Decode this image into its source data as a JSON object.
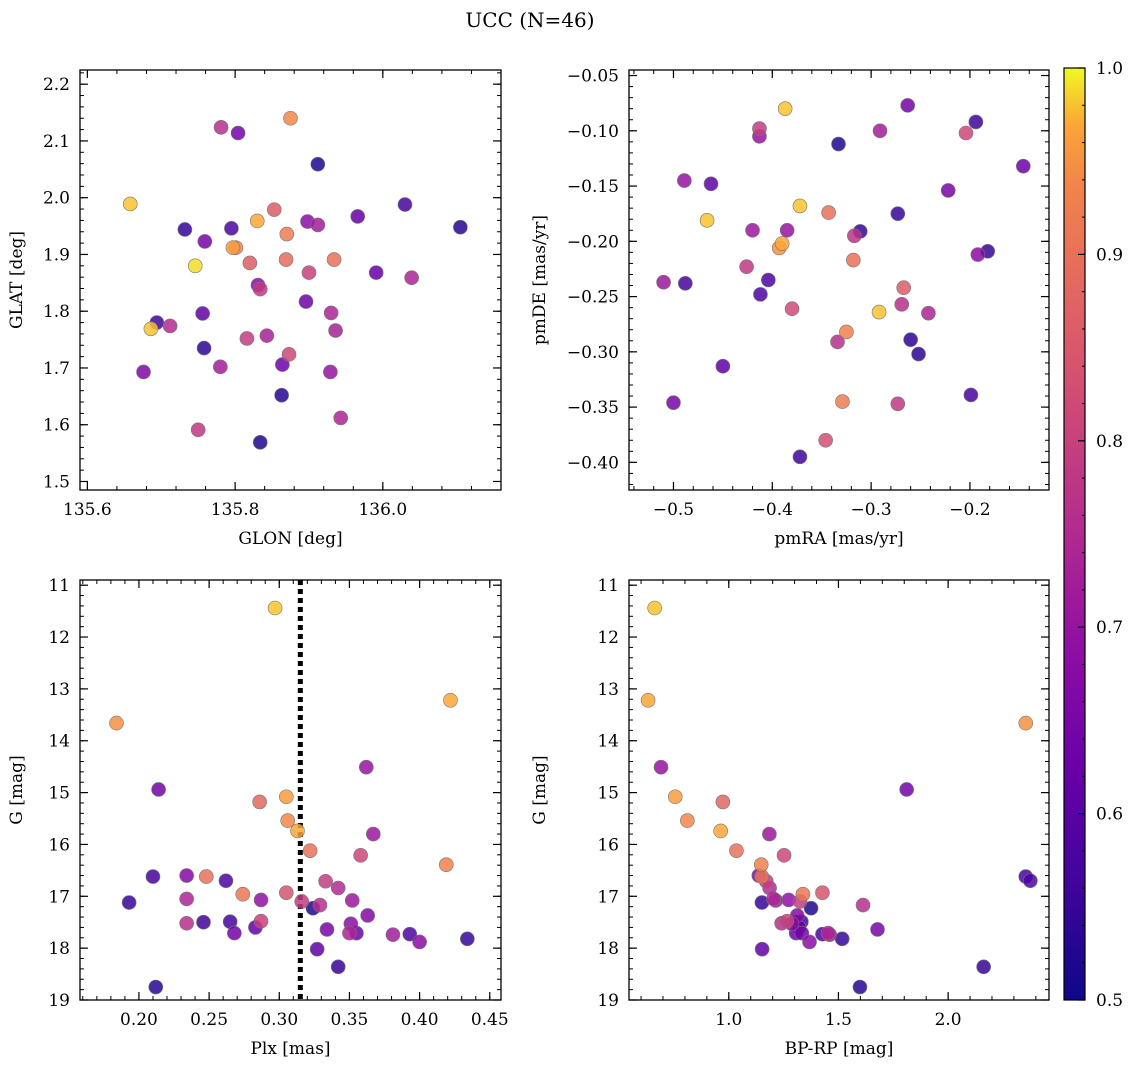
{
  "figure": {
    "title": "UCC (N=46)"
  },
  "colorbar": {
    "min": 0.5,
    "max": 1.0,
    "colormap": "plasma",
    "ticks": [
      0.5,
      0.6,
      0.7,
      0.8,
      0.9,
      1.0
    ],
    "tick_labels": [
      "0.5",
      "0.6",
      "0.7",
      "0.8",
      "0.9",
      "1.0"
    ]
  },
  "chart_data": [
    {
      "type": "scatter",
      "id": "glon-glat",
      "xlabel": "GLON [deg]",
      "ylabel": "GLAT [deg]",
      "xlim": [
        135.59,
        136.16
      ],
      "ylim": [
        1.485,
        2.225
      ],
      "x_ticks": [
        135.6,
        135.8,
        136.0
      ],
      "x_tick_labels": [
        "135.6",
        "135.8",
        "136.0"
      ],
      "y_ticks": [
        1.5,
        1.6,
        1.7,
        1.8,
        1.9,
        2.0,
        2.1,
        2.2
      ],
      "y_tick_labels": [
        "1.5",
        "1.6",
        "1.7",
        "1.8",
        "1.9",
        "2.0",
        "2.1",
        "2.2"
      ],
      "invert_y": false,
      "points": [
        {
          "x": 135.658,
          "y": 1.989,
          "c": 0.98
        },
        {
          "x": 135.875,
          "y": 2.14,
          "c": 0.94
        },
        {
          "x": 135.781,
          "y": 2.124,
          "c": 0.76
        },
        {
          "x": 135.804,
          "y": 2.114,
          "c": 0.64
        },
        {
          "x": 135.912,
          "y": 2.059,
          "c": 0.52
        },
        {
          "x": 136.03,
          "y": 1.988,
          "c": 0.57
        },
        {
          "x": 136.105,
          "y": 1.948,
          "c": 0.53
        },
        {
          "x": 135.853,
          "y": 1.979,
          "c": 0.86
        },
        {
          "x": 135.83,
          "y": 1.959,
          "c": 0.97
        },
        {
          "x": 135.898,
          "y": 1.958,
          "c": 0.68
        },
        {
          "x": 135.912,
          "y": 1.952,
          "c": 0.72
        },
        {
          "x": 135.966,
          "y": 1.967,
          "c": 0.62
        },
        {
          "x": 135.732,
          "y": 1.944,
          "c": 0.55
        },
        {
          "x": 135.795,
          "y": 1.946,
          "c": 0.58
        },
        {
          "x": 135.87,
          "y": 1.936,
          "c": 0.92
        },
        {
          "x": 135.759,
          "y": 1.923,
          "c": 0.65
        },
        {
          "x": 135.797,
          "y": 1.912,
          "c": 0.96
        },
        {
          "x": 135.801,
          "y": 1.912,
          "c": 0.93
        },
        {
          "x": 135.869,
          "y": 1.891,
          "c": 0.89
        },
        {
          "x": 135.934,
          "y": 1.891,
          "c": 0.9
        },
        {
          "x": 135.746,
          "y": 1.88,
          "c": 0.99
        },
        {
          "x": 135.82,
          "y": 1.885,
          "c": 0.86
        },
        {
          "x": 135.9,
          "y": 1.868,
          "c": 0.8
        },
        {
          "x": 135.991,
          "y": 1.868,
          "c": 0.62
        },
        {
          "x": 136.039,
          "y": 1.859,
          "c": 0.74
        },
        {
          "x": 135.831,
          "y": 1.846,
          "c": 0.68
        },
        {
          "x": 135.834,
          "y": 1.839,
          "c": 0.78
        },
        {
          "x": 135.896,
          "y": 1.817,
          "c": 0.63
        },
        {
          "x": 135.756,
          "y": 1.796,
          "c": 0.61
        },
        {
          "x": 135.93,
          "y": 1.797,
          "c": 0.74
        },
        {
          "x": 135.694,
          "y": 1.78,
          "c": 0.56
        },
        {
          "x": 135.712,
          "y": 1.774,
          "c": 0.75
        },
        {
          "x": 135.686,
          "y": 1.769,
          "c": 0.98
        },
        {
          "x": 135.936,
          "y": 1.766,
          "c": 0.73
        },
        {
          "x": 135.843,
          "y": 1.757,
          "c": 0.73
        },
        {
          "x": 135.816,
          "y": 1.752,
          "c": 0.79
        },
        {
          "x": 135.758,
          "y": 1.735,
          "c": 0.54
        },
        {
          "x": 135.873,
          "y": 1.724,
          "c": 0.81
        },
        {
          "x": 135.864,
          "y": 1.706,
          "c": 0.63
        },
        {
          "x": 135.78,
          "y": 1.702,
          "c": 0.72
        },
        {
          "x": 135.676,
          "y": 1.693,
          "c": 0.66
        },
        {
          "x": 135.929,
          "y": 1.693,
          "c": 0.7
        },
        {
          "x": 135.863,
          "y": 1.652,
          "c": 0.53
        },
        {
          "x": 135.943,
          "y": 1.612,
          "c": 0.74
        },
        {
          "x": 135.75,
          "y": 1.591,
          "c": 0.78
        },
        {
          "x": 135.834,
          "y": 1.569,
          "c": 0.52
        }
      ]
    },
    {
      "type": "scatter",
      "id": "pmra-pmde",
      "xlabel": "pmRA [mas/yr]",
      "ylabel": "pmDE [mas/yr]",
      "xlim": [
        -0.545,
        -0.12
      ],
      "ylim": [
        -0.425,
        -0.045
      ],
      "x_ticks": [
        -0.5,
        -0.4,
        -0.3,
        -0.2
      ],
      "x_tick_labels": [
        "−0.5",
        "−0.4",
        "−0.3",
        "−0.2"
      ],
      "y_ticks": [
        -0.4,
        -0.35,
        -0.3,
        -0.25,
        -0.2,
        -0.15,
        -0.1,
        -0.05
      ],
      "y_tick_labels": [
        "−0.40",
        "−0.35",
        "−0.30",
        "−0.25",
        "−0.20",
        "−0.15",
        "−0.10",
        "−0.05"
      ],
      "invert_y": false,
      "points": [
        {
          "x": -0.387,
          "y": -0.08,
          "c": 0.98
        },
        {
          "x": -0.263,
          "y": -0.077,
          "c": 0.64
        },
        {
          "x": -0.194,
          "y": -0.092,
          "c": 0.56
        },
        {
          "x": -0.413,
          "y": -0.098,
          "c": 0.79
        },
        {
          "x": -0.291,
          "y": -0.1,
          "c": 0.72
        },
        {
          "x": -0.204,
          "y": -0.102,
          "c": 0.81
        },
        {
          "x": -0.413,
          "y": -0.105,
          "c": 0.7
        },
        {
          "x": -0.333,
          "y": -0.112,
          "c": 0.52
        },
        {
          "x": -0.146,
          "y": -0.132,
          "c": 0.63
        },
        {
          "x": -0.489,
          "y": -0.145,
          "c": 0.7
        },
        {
          "x": -0.462,
          "y": -0.148,
          "c": 0.61
        },
        {
          "x": -0.222,
          "y": -0.154,
          "c": 0.65
        },
        {
          "x": -0.372,
          "y": -0.168,
          "c": 0.98
        },
        {
          "x": -0.466,
          "y": -0.181,
          "c": 0.98
        },
        {
          "x": -0.343,
          "y": -0.174,
          "c": 0.9
        },
        {
          "x": -0.273,
          "y": -0.175,
          "c": 0.55
        },
        {
          "x": -0.42,
          "y": -0.19,
          "c": 0.71
        },
        {
          "x": -0.385,
          "y": -0.19,
          "c": 0.7
        },
        {
          "x": -0.311,
          "y": -0.191,
          "c": 0.55
        },
        {
          "x": -0.317,
          "y": -0.195,
          "c": 0.77
        },
        {
          "x": -0.39,
          "y": -0.202,
          "c": 0.97
        },
        {
          "x": -0.393,
          "y": -0.206,
          "c": 0.95
        },
        {
          "x": -0.182,
          "y": -0.209,
          "c": 0.55
        },
        {
          "x": -0.192,
          "y": -0.212,
          "c": 0.68
        },
        {
          "x": -0.318,
          "y": -0.217,
          "c": 0.9
        },
        {
          "x": -0.426,
          "y": -0.223,
          "c": 0.78
        },
        {
          "x": -0.404,
          "y": -0.235,
          "c": 0.58
        },
        {
          "x": -0.51,
          "y": -0.237,
          "c": 0.71
        },
        {
          "x": -0.488,
          "y": -0.238,
          "c": 0.57
        },
        {
          "x": -0.267,
          "y": -0.242,
          "c": 0.86
        },
        {
          "x": -0.412,
          "y": -0.248,
          "c": 0.58
        },
        {
          "x": -0.269,
          "y": -0.257,
          "c": 0.76
        },
        {
          "x": -0.38,
          "y": -0.261,
          "c": 0.82
        },
        {
          "x": -0.242,
          "y": -0.265,
          "c": 0.74
        },
        {
          "x": -0.292,
          "y": -0.264,
          "c": 0.98
        },
        {
          "x": -0.325,
          "y": -0.282,
          "c": 0.93
        },
        {
          "x": -0.26,
          "y": -0.289,
          "c": 0.54
        },
        {
          "x": -0.334,
          "y": -0.291,
          "c": 0.76
        },
        {
          "x": -0.252,
          "y": -0.302,
          "c": 0.54
        },
        {
          "x": -0.45,
          "y": -0.313,
          "c": 0.61
        },
        {
          "x": -0.199,
          "y": -0.339,
          "c": 0.57
        },
        {
          "x": -0.329,
          "y": -0.345,
          "c": 0.92
        },
        {
          "x": -0.5,
          "y": -0.346,
          "c": 0.65
        },
        {
          "x": -0.273,
          "y": -0.347,
          "c": 0.78
        },
        {
          "x": -0.346,
          "y": -0.38,
          "c": 0.83
        },
        {
          "x": -0.372,
          "y": -0.395,
          "c": 0.56
        }
      ]
    },
    {
      "type": "scatter",
      "id": "plx-g",
      "xlabel": "Plx [mas]",
      "ylabel": "G [mag]",
      "xlim": [
        0.158,
        0.458
      ],
      "ylim": [
        19.0,
        10.9
      ],
      "x_ticks": [
        0.2,
        0.25,
        0.3,
        0.35,
        0.4,
        0.45
      ],
      "x_tick_labels": [
        "0.20",
        "0.25",
        "0.30",
        "0.35",
        "0.40",
        "0.45"
      ],
      "y_ticks": [
        11,
        12,
        13,
        14,
        15,
        16,
        17,
        18,
        19
      ],
      "y_tick_labels": [
        "11",
        "12",
        "13",
        "14",
        "15",
        "16",
        "17",
        "18",
        "19"
      ],
      "invert_y": true,
      "vline": 0.315,
      "points": [
        {
          "x": 0.297,
          "y": 11.44,
          "c": 0.98
        },
        {
          "x": 0.422,
          "y": 13.22,
          "c": 0.97
        },
        {
          "x": 0.184,
          "y": 13.66,
          "c": 0.95
        },
        {
          "x": 0.362,
          "y": 14.51,
          "c": 0.7
        },
        {
          "x": 0.214,
          "y": 14.94,
          "c": 0.64
        },
        {
          "x": 0.305,
          "y": 15.08,
          "c": 0.96
        },
        {
          "x": 0.286,
          "y": 15.18,
          "c": 0.88
        },
        {
          "x": 0.306,
          "y": 15.54,
          "c": 0.94
        },
        {
          "x": 0.313,
          "y": 15.74,
          "c": 0.97
        },
        {
          "x": 0.367,
          "y": 15.8,
          "c": 0.71
        },
        {
          "x": 0.322,
          "y": 16.12,
          "c": 0.9
        },
        {
          "x": 0.358,
          "y": 16.21,
          "c": 0.81
        },
        {
          "x": 0.419,
          "y": 16.39,
          "c": 0.93
        },
        {
          "x": 0.21,
          "y": 16.62,
          "c": 0.57
        },
        {
          "x": 0.234,
          "y": 16.6,
          "c": 0.67
        },
        {
          "x": 0.248,
          "y": 16.62,
          "c": 0.9
        },
        {
          "x": 0.262,
          "y": 16.7,
          "c": 0.58
        },
        {
          "x": 0.333,
          "y": 16.71,
          "c": 0.79
        },
        {
          "x": 0.342,
          "y": 16.84,
          "c": 0.75
        },
        {
          "x": 0.193,
          "y": 17.12,
          "c": 0.55
        },
        {
          "x": 0.234,
          "y": 17.05,
          "c": 0.74
        },
        {
          "x": 0.274,
          "y": 16.96,
          "c": 0.91
        },
        {
          "x": 0.287,
          "y": 17.07,
          "c": 0.69
        },
        {
          "x": 0.305,
          "y": 16.93,
          "c": 0.84
        },
        {
          "x": 0.316,
          "y": 17.1,
          "c": 0.79
        },
        {
          "x": 0.324,
          "y": 17.23,
          "c": 0.52
        },
        {
          "x": 0.329,
          "y": 17.17,
          "c": 0.76
        },
        {
          "x": 0.352,
          "y": 17.08,
          "c": 0.71
        },
        {
          "x": 0.363,
          "y": 17.37,
          "c": 0.67
        },
        {
          "x": 0.234,
          "y": 17.52,
          "c": 0.76
        },
        {
          "x": 0.246,
          "y": 17.5,
          "c": 0.56
        },
        {
          "x": 0.265,
          "y": 17.49,
          "c": 0.57
        },
        {
          "x": 0.268,
          "y": 17.71,
          "c": 0.64
        },
        {
          "x": 0.283,
          "y": 17.6,
          "c": 0.62
        },
        {
          "x": 0.287,
          "y": 17.48,
          "c": 0.8
        },
        {
          "x": 0.334,
          "y": 17.64,
          "c": 0.65
        },
        {
          "x": 0.35,
          "y": 17.71,
          "c": 0.74
        },
        {
          "x": 0.351,
          "y": 17.53,
          "c": 0.68
        },
        {
          "x": 0.355,
          "y": 17.71,
          "c": 0.63
        },
        {
          "x": 0.381,
          "y": 17.74,
          "c": 0.72
        },
        {
          "x": 0.393,
          "y": 17.73,
          "c": 0.58
        },
        {
          "x": 0.4,
          "y": 17.88,
          "c": 0.68
        },
        {
          "x": 0.434,
          "y": 17.82,
          "c": 0.55
        },
        {
          "x": 0.327,
          "y": 18.02,
          "c": 0.61
        },
        {
          "x": 0.342,
          "y": 18.36,
          "c": 0.55
        },
        {
          "x": 0.212,
          "y": 18.75,
          "c": 0.53
        }
      ]
    },
    {
      "type": "scatter",
      "id": "bprp-g",
      "xlabel": "BP-RP [mag]",
      "ylabel": "G [mag]",
      "xlim": [
        0.545,
        2.46
      ],
      "ylim": [
        19.0,
        10.9
      ],
      "x_ticks": [
        1.0,
        1.5,
        2.0
      ],
      "x_tick_labels": [
        "1.0",
        "1.5",
        "2.0"
      ],
      "y_ticks": [
        11,
        12,
        13,
        14,
        15,
        16,
        17,
        18,
        19
      ],
      "y_tick_labels": [
        "11",
        "12",
        "13",
        "14",
        "15",
        "16",
        "17",
        "18",
        "19"
      ],
      "invert_y": true,
      "points": [
        {
          "x": 0.662,
          "y": 11.44,
          "c": 0.98
        },
        {
          "x": 0.632,
          "y": 13.22,
          "c": 0.97
        },
        {
          "x": 2.354,
          "y": 13.66,
          "c": 0.95
        },
        {
          "x": 0.691,
          "y": 14.51,
          "c": 0.7
        },
        {
          "x": 1.811,
          "y": 14.94,
          "c": 0.64
        },
        {
          "x": 0.756,
          "y": 15.08,
          "c": 0.96
        },
        {
          "x": 0.973,
          "y": 15.18,
          "c": 0.88
        },
        {
          "x": 0.811,
          "y": 15.54,
          "c": 0.94
        },
        {
          "x": 0.963,
          "y": 15.74,
          "c": 0.97
        },
        {
          "x": 1.185,
          "y": 15.8,
          "c": 0.71
        },
        {
          "x": 1.035,
          "y": 16.12,
          "c": 0.9
        },
        {
          "x": 1.252,
          "y": 16.21,
          "c": 0.81
        },
        {
          "x": 1.148,
          "y": 16.39,
          "c": 0.93
        },
        {
          "x": 2.354,
          "y": 16.62,
          "c": 0.57
        },
        {
          "x": 1.137,
          "y": 16.6,
          "c": 0.67
        },
        {
          "x": 1.15,
          "y": 16.62,
          "c": 0.9
        },
        {
          "x": 2.375,
          "y": 16.7,
          "c": 0.58
        },
        {
          "x": 1.171,
          "y": 16.71,
          "c": 0.79
        },
        {
          "x": 1.186,
          "y": 16.84,
          "c": 0.75
        },
        {
          "x": 1.151,
          "y": 17.12,
          "c": 0.55
        },
        {
          "x": 1.204,
          "y": 17.05,
          "c": 0.74
        },
        {
          "x": 1.338,
          "y": 16.96,
          "c": 0.91
        },
        {
          "x": 1.273,
          "y": 17.07,
          "c": 0.69
        },
        {
          "x": 1.427,
          "y": 16.93,
          "c": 0.84
        },
        {
          "x": 1.325,
          "y": 17.1,
          "c": 0.79
        },
        {
          "x": 1.375,
          "y": 17.23,
          "c": 0.52
        },
        {
          "x": 1.612,
          "y": 17.17,
          "c": 0.76
        },
        {
          "x": 1.214,
          "y": 17.08,
          "c": 0.71
        },
        {
          "x": 1.312,
          "y": 17.37,
          "c": 0.67
        },
        {
          "x": 1.241,
          "y": 17.52,
          "c": 0.76
        },
        {
          "x": 1.308,
          "y": 17.5,
          "c": 0.56
        },
        {
          "x": 1.331,
          "y": 17.49,
          "c": 0.57
        },
        {
          "x": 1.333,
          "y": 17.71,
          "c": 0.64
        },
        {
          "x": 1.32,
          "y": 17.6,
          "c": 0.62
        },
        {
          "x": 1.265,
          "y": 17.48,
          "c": 0.8
        },
        {
          "x": 1.678,
          "y": 17.64,
          "c": 0.65
        },
        {
          "x": 1.453,
          "y": 17.71,
          "c": 0.74
        },
        {
          "x": 1.288,
          "y": 17.53,
          "c": 0.68
        },
        {
          "x": 1.307,
          "y": 17.71,
          "c": 0.63
        },
        {
          "x": 1.46,
          "y": 17.74,
          "c": 0.72
        },
        {
          "x": 1.427,
          "y": 17.73,
          "c": 0.58
        },
        {
          "x": 1.368,
          "y": 17.88,
          "c": 0.68
        },
        {
          "x": 1.517,
          "y": 17.82,
          "c": 0.55
        },
        {
          "x": 1.152,
          "y": 18.02,
          "c": 0.61
        },
        {
          "x": 2.162,
          "y": 18.36,
          "c": 0.55
        },
        {
          "x": 1.598,
          "y": 18.75,
          "c": 0.53
        }
      ]
    }
  ]
}
